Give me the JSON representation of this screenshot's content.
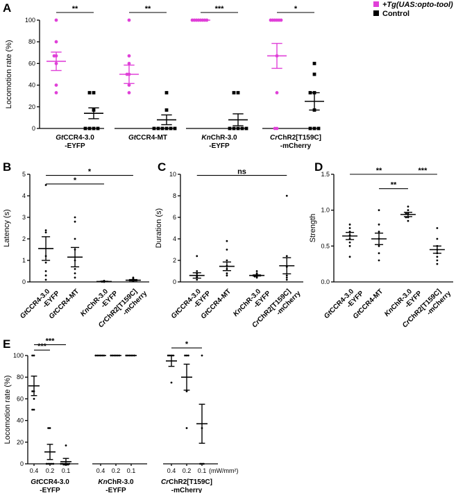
{
  "colors": {
    "opto": "#e040d8",
    "control": "#000000"
  },
  "chart_data": [
    {
      "panel": "A",
      "type": "scatter",
      "ylabel": "Locomotion rate (%)",
      "ylim": [
        0,
        100
      ],
      "yticks": [
        0,
        20,
        40,
        60,
        80,
        100
      ],
      "legend": {
        "placement": "top-right",
        "entries": [
          {
            "label": "+Tg(UAS:opto-tool)",
            "color": "#e040d8"
          },
          {
            "label": "Control",
            "color": "#000000"
          }
        ]
      },
      "groups": [
        {
          "label_italic": "Gt",
          "label_rest": "CCR4-3.0",
          "label_line2": "-EYFP",
          "opto": {
            "mean": 62,
            "sem": 8.5,
            "points": [
              100,
              80,
              67,
              67,
              60,
              40,
              33
            ]
          },
          "control": {
            "mean": 14,
            "sem": 5,
            "points": [
              33,
              33,
              17,
              0,
              0,
              0,
              0
            ]
          },
          "significance": "**"
        },
        {
          "label_italic": "Gt",
          "label_rest": "CCR4-MT",
          "label_line2": "",
          "opto": {
            "mean": 50,
            "sem": 8.5,
            "points": [
              100,
              67,
              60,
              50,
              50,
              40,
              33
            ]
          },
          "control": {
            "mean": 8,
            "sem": 4.5,
            "points": [
              33,
              17,
              0,
              0,
              0,
              0,
              0,
              0
            ]
          },
          "significance": "**"
        },
        {
          "label_italic": "Kn",
          "label_rest": "ChR-3.0",
          "label_line2": "-EYFP",
          "opto": {
            "mean": 100,
            "sem": 0,
            "points": [
              100,
              100,
              100,
              100,
              100,
              100,
              100,
              100
            ]
          },
          "control": {
            "mean": 8,
            "sem": 5.5,
            "points": [
              33,
              33,
              0,
              0,
              0,
              0,
              0
            ]
          },
          "significance": "***"
        },
        {
          "label_italic": "Cr",
          "label_rest": "ChR2[T159C]",
          "label_line2": "-mCherry",
          "opto": {
            "mean": 67,
            "sem": 11.5,
            "points": [
              100,
              100,
              100,
              100,
              100,
              100,
              67,
              33,
              0,
              0
            ]
          },
          "control": {
            "mean": 25,
            "sem": 8,
            "points": [
              60,
              50,
              33,
              33,
              17,
              0,
              0,
              0
            ]
          },
          "significance": "*"
        }
      ]
    },
    {
      "panel": "B",
      "type": "scatter",
      "ylabel": "Latency (s)",
      "ylim": [
        0,
        5
      ],
      "yticks": [
        0,
        1,
        2,
        3,
        4,
        5
      ],
      "groups": [
        {
          "label_italic": "Gt",
          "label_rest": "CCR4-3.0",
          "label_line2": "-EYFP",
          "mean": 1.55,
          "sem": 0.55,
          "points": [
            4.5,
            2.4,
            2.3,
            1.2,
            0.9,
            0.5,
            0.3,
            0.1
          ]
        },
        {
          "label_italic": "Gt",
          "label_rest": "CCR4-MT",
          "label_line2": "",
          "mean": 1.15,
          "sem": 0.45,
          "points": [
            3.0,
            2.8,
            2.0,
            1.5,
            1.0,
            0.6,
            0.4,
            0.2
          ]
        },
        {
          "label_italic": "Kn",
          "label_rest": "ChR-3.0",
          "label_line2": "-EYFP",
          "mean": 0.02,
          "sem": 0.01,
          "points": [
            0.05,
            0.04,
            0.03,
            0.02,
            0.02,
            0.01,
            0.01,
            0.0
          ]
        },
        {
          "label_italic": "Cr",
          "label_rest": "ChR2[T159C]",
          "label_line2": "-mCherry",
          "mean": 0.08,
          "sem": 0.03,
          "points": [
            0.2,
            0.15,
            0.12,
            0.1,
            0.08,
            0.06,
            0.05,
            0.04
          ]
        }
      ],
      "comparisons": [
        {
          "from": 0,
          "to": 3,
          "label": "*",
          "y": 4.95
        },
        {
          "from": 0,
          "to": 2,
          "label": "*",
          "y": 4.55
        }
      ]
    },
    {
      "panel": "C",
      "type": "scatter",
      "ylabel": "Duration (s)",
      "ylim": [
        0,
        10
      ],
      "yticks": [
        0,
        2,
        4,
        6,
        8,
        10
      ],
      "groups": [
        {
          "label_italic": "Gt",
          "label_rest": "CCR4-3.0",
          "label_line2": "-EYFP",
          "mean": 0.6,
          "sem": 0.25,
          "points": [
            2.4,
            1.0,
            0.8,
            0.6,
            0.5,
            0.4,
            0.2
          ]
        },
        {
          "label_italic": "Gt",
          "label_rest": "CCR4-MT",
          "label_line2": "",
          "mean": 1.45,
          "sem": 0.4,
          "points": [
            3.8,
            3.0,
            2.0,
            1.5,
            1.2,
            0.8,
            0.6
          ]
        },
        {
          "label_italic": "Kn",
          "label_rest": "ChR-3.0",
          "label_line2": "-EYFP",
          "mean": 0.6,
          "sem": 0.05,
          "points": [
            1.0,
            0.8,
            0.7,
            0.6,
            0.6,
            0.5,
            0.5,
            0.4
          ]
        },
        {
          "label_italic": "Cr",
          "label_rest": "ChR2[T159C]",
          "label_line2": "-mCherry",
          "mean": 1.5,
          "sem": 0.75,
          "points": [
            8.0,
            2.4,
            1.4,
            0.6,
            0.4,
            0.2
          ]
        }
      ],
      "comparisons": [
        {
          "from": 0,
          "to": 3,
          "label": "ns",
          "y": 9.9
        }
      ]
    },
    {
      "panel": "D",
      "type": "scatter",
      "ylabel": "Strength",
      "ylim": [
        0,
        1.5
      ],
      "yticks": [
        0.0,
        0.5,
        1.0,
        1.5
      ],
      "groups": [
        {
          "label_italic": "Gt",
          "label_rest": "CCR4-3.0",
          "label_line2": "-EYFP",
          "mean": 0.64,
          "sem": 0.05,
          "points": [
            0.8,
            0.75,
            0.7,
            0.65,
            0.6,
            0.55,
            0.5,
            0.35
          ]
        },
        {
          "label_italic": "Gt",
          "label_rest": "CCR4-MT",
          "label_line2": "",
          "mean": 0.6,
          "sem": 0.08,
          "points": [
            1.0,
            0.8,
            0.7,
            0.6,
            0.5,
            0.4,
            0.3
          ]
        },
        {
          "label_italic": "Kn",
          "label_rest": "ChR-3.0",
          "label_line2": "-EYFP",
          "mean": 0.94,
          "sem": 0.03,
          "points": [
            1.05,
            1.0,
            0.95,
            0.95,
            0.9,
            0.9,
            0.85
          ]
        },
        {
          "label_italic": "Cr",
          "label_rest": "ChR2[T159C]",
          "label_line2": "-mCherry",
          "mean": 0.45,
          "sem": 0.05,
          "points": [
            0.75,
            0.6,
            0.5,
            0.45,
            0.4,
            0.35,
            0.3,
            0.25
          ]
        }
      ],
      "comparisons": [
        {
          "from": 0,
          "to": 2,
          "label": "**",
          "y": 1.5
        },
        {
          "from": 1,
          "to": 2,
          "label": "**",
          "y": 1.3
        },
        {
          "from": 2,
          "to": 3,
          "label": "***",
          "y": 1.5
        }
      ]
    },
    {
      "panel": "E",
      "type": "scatter",
      "ylabel": "Locomotion rate (%)",
      "ylim": [
        0,
        100
      ],
      "yticks": [
        0,
        20,
        40,
        60,
        80,
        100
      ],
      "intensity_unit": "(mW/mm²)",
      "groups": [
        {
          "label_italic": "Gt",
          "label_rest": "CCR4-3.0",
          "label_line2": "-EYFP",
          "levels": [
            {
              "x": "0.4",
              "mean": 72,
              "sem": 9,
              "points": [
                100,
                100,
                67,
                67,
                60,
                50,
                50
              ]
            },
            {
              "x": "0.2",
              "mean": 11,
              "sem": 7,
              "points": [
                33,
                33,
                0,
                0,
                0,
                0,
                0
              ]
            },
            {
              "x": "0.1",
              "mean": 2,
              "sem": 3,
              "points": [
                17,
                0,
                0,
                0,
                0,
                0,
                0
              ]
            }
          ]
        },
        {
          "label_italic": "Kn",
          "label_rest": "ChR-3.0",
          "label_line2": "-EYFP",
          "levels": [
            {
              "x": "0.4",
              "mean": 100,
              "sem": 0,
              "points": [
                100,
                100,
                100,
                100,
                100,
                100
              ]
            },
            {
              "x": "0.2",
              "mean": 100,
              "sem": 0,
              "points": [
                100,
                100,
                100,
                100,
                100,
                100
              ]
            },
            {
              "x": "0.1",
              "mean": 100,
              "sem": 0,
              "points": [
                100,
                100,
                100,
                100,
                100,
                100
              ]
            }
          ]
        },
        {
          "label_italic": "Cr",
          "label_rest": "ChR2[T159C]",
          "label_line2": "-mCherry",
          "levels": [
            {
              "x": "0.4",
              "mean": 95,
              "sem": 5,
              "points": [
                100,
                100,
                100,
                100,
                75
              ]
            },
            {
              "x": "0.2",
              "mean": 80,
              "sem": 12,
              "points": [
                100,
                100,
                100,
                67,
                33
              ]
            },
            {
              "x": "0.1",
              "mean": 37,
              "sem": 18,
              "points": [
                100,
                33,
                0,
                0,
                0
              ]
            }
          ]
        }
      ],
      "comparisons": [
        {
          "group": 0,
          "from": 0,
          "to": 2,
          "label": "***",
          "y": 110
        },
        {
          "group": 0,
          "from": 0,
          "to": 1,
          "label": "***",
          "y": 105
        },
        {
          "group": 2,
          "from": 0,
          "to": 2,
          "label": "*",
          "y": 107
        }
      ]
    }
  ]
}
